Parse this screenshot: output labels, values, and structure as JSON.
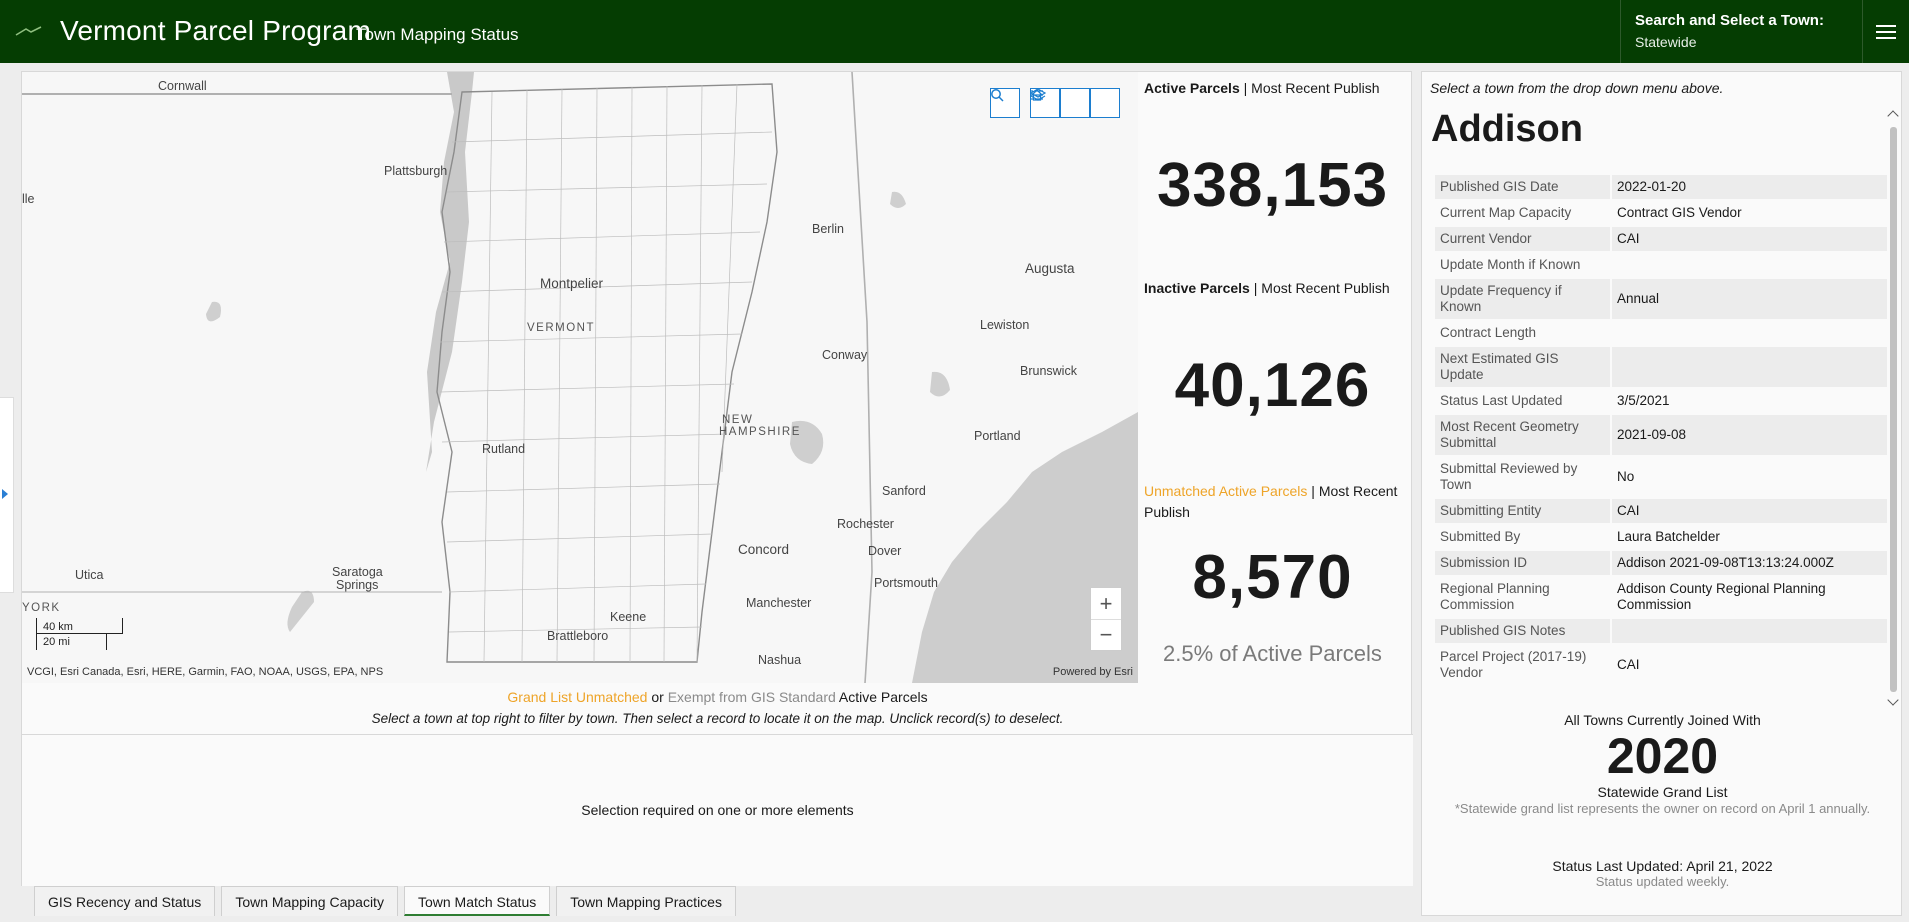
{
  "header": {
    "title": "Vermont Parcel Program",
    "subtitle": "Town Mapping Status",
    "town_select_label": "Search and Select a Town:",
    "town_select_value": "Statewide",
    "brand_color": "#053d02"
  },
  "map": {
    "labels": {
      "cornwall": "Cornwall",
      "plattsburgh": "Plattsburgh",
      "ille": "lle",
      "montpelier": "Montpelier",
      "vermont": "VERMONT",
      "berlin": "Berlin",
      "augusta": "Augusta",
      "lewiston": "Lewiston",
      "conway": "Conway",
      "brunswick": "Brunswick",
      "new_hampshire_1": "NEW",
      "new_hampshire_2": "HAMPSHIRE",
      "portland": "Portland",
      "rutland": "Rutland",
      "sanford": "Sanford",
      "rochester": "Rochester",
      "concord": "Concord",
      "dover": "Dover",
      "portsmouth": "Portsmouth",
      "utica": "Utica",
      "saratoga_1": "Saratoga",
      "saratoga_2": "Springs",
      "york": "YORK",
      "keene": "Keene",
      "manchester": "Manchester",
      "brattleboro": "Brattleboro",
      "nashua": "Nashua"
    },
    "scale_km": "40 km",
    "scale_mi": "20 mi",
    "attribution": "VCGI, Esri Canada, Esri, HERE, Garmin, FAO, NOAA, USGS, EPA, NPS",
    "powered_by": "Powered by Esri",
    "zoom_in": "+",
    "zoom_out": "−",
    "tool_icons": [
      "search-icon",
      "home-icon",
      "list-icon",
      "layers-icon"
    ]
  },
  "indicators": {
    "active": {
      "label_strong": "Active Parcels",
      "label_rest": " | Most Recent Publish",
      "value": "338,153"
    },
    "inactive": {
      "label_strong": "Inactive Parcels",
      "label_rest": " | Most Recent Publish",
      "value": "40,126"
    },
    "unmatched": {
      "label_strong": "Unmatched Active Parcels",
      "label_rest": " | Most Recent Publish",
      "value": "8,570",
      "sub": "2.5% of Active Parcels"
    },
    "accent_color": "#eea428"
  },
  "list": {
    "caption_orange": "Grand List Unmatched",
    "caption_or": " or ",
    "caption_grey": "Exempt from GIS Standard",
    "caption_rest": " Active Parcels",
    "hint": "Select a town at top right to filter by town. Then select a record to locate it on the map. Unclick record(s) to deselect.",
    "empty_message": "Selection required on one or more elements"
  },
  "tabs": [
    {
      "label": "GIS Recency and Status"
    },
    {
      "label": "Town Mapping Capacity"
    },
    {
      "label": "Town Match Status",
      "active": true
    },
    {
      "label": "Town Mapping Practices"
    }
  ],
  "details_panel": {
    "hint": "Select a town from the drop down menu above.",
    "town_name": "Addison",
    "rows": [
      {
        "key": "Published GIS Date",
        "value": "2022-01-20"
      },
      {
        "key": "Current Map Capacity",
        "value": "Contract GIS Vendor"
      },
      {
        "key": "Current Vendor",
        "value": "CAI"
      },
      {
        "key": "Update Month if Known",
        "value": ""
      },
      {
        "key": "Update Frequency if Known",
        "value": "Annual"
      },
      {
        "key": "Contract Length",
        "value": ""
      },
      {
        "key": "Next Estimated GIS Update",
        "value": ""
      },
      {
        "key": "Status Last Updated",
        "value": "3/5/2021"
      },
      {
        "key": "Most Recent Geometry Submittal",
        "value": "2021-09-08"
      },
      {
        "key": "Submittal Reviewed by Town",
        "value": "No"
      },
      {
        "key": "Submitting Entity",
        "value": "CAI"
      },
      {
        "key": "Submitted By",
        "value": "Laura Batchelder"
      },
      {
        "key": "Submission ID",
        "value": "Addison 2021-09-08T13:13:24.000Z"
      },
      {
        "key": "Regional Planning Commission",
        "value": "Addison County Regional Planning Commission"
      },
      {
        "key": "Published GIS Notes",
        "value": ""
      },
      {
        "key": "Parcel Project (2017-19) Vendor",
        "value": "CAI"
      }
    ],
    "joined_label": "All Towns Currently Joined With",
    "joined_year": "2020",
    "joined_sub": "Statewide Grand List",
    "joined_note": "*Statewide grand list represents the owner on record on April 1 annually.",
    "updated_label": "Status Last Updated: April 21, 2022",
    "updated_note": "Status updated weekly."
  }
}
